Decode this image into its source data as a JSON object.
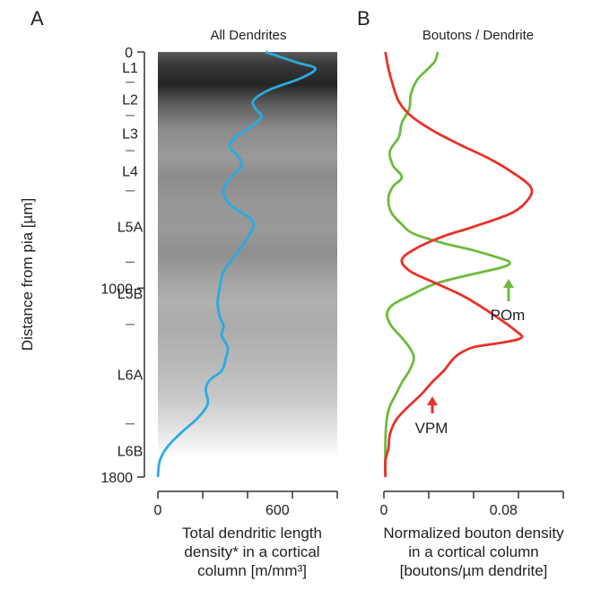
{
  "panels": {
    "a": {
      "letter": "A",
      "title": "All Dendrites"
    },
    "b": {
      "letter": "B",
      "title": "Boutons / Dendrite"
    }
  },
  "y_axis": {
    "label": "Distance from pia [µm]"
  },
  "layers": [
    "L1",
    "L2",
    "L3",
    "L4",
    "L5A",
    "L5B",
    "L6A",
    "L6B"
  ],
  "layer_boundaries": [
    128,
    269,
    418,
    588,
    890,
    1154,
    1575
  ],
  "annotations": {
    "pom": "POm",
    "vpm": "VPM"
  },
  "colors": {
    "dendrite": "#29abe2",
    "pom": "#6cbb3c",
    "vpm": "#e8312a",
    "axis": "#333333"
  },
  "chart_data": [
    {
      "type": "line",
      "title": "All Dendrites",
      "xlabel": "Total dendritic length density* in a cortical column [m/mm³]",
      "ylabel": "Distance from pia [µm]",
      "xlim": [
        0,
        900
      ],
      "ylim": [
        1800,
        0
      ],
      "x_ticks": [
        "0",
        "600"
      ],
      "y_ticks": [
        "0",
        "1000",
        "1800"
      ],
      "background": "grayscale density map (darkest at 0–150 µm, fading toward 1700 µm)",
      "series": [
        {
          "color": "#29abe2",
          "points": [
            [
              540,
              0
            ],
            [
              700,
              45
            ],
            [
              790,
              70
            ],
            [
              720,
              110
            ],
            [
              560,
              160
            ],
            [
              480,
              205
            ],
            [
              490,
              240
            ],
            [
              520,
              275
            ],
            [
              460,
              320
            ],
            [
              390,
              360
            ],
            [
              360,
              400
            ],
            [
              400,
              440
            ],
            [
              420,
              480
            ],
            [
              380,
              520
            ],
            [
              340,
              560
            ],
            [
              330,
              600
            ],
            [
              360,
              645
            ],
            [
              420,
              680
            ],
            [
              470,
              710
            ],
            [
              480,
              740
            ],
            [
              440,
              800
            ],
            [
              390,
              860
            ],
            [
              330,
              930
            ],
            [
              310,
              1000
            ],
            [
              300,
              1060
            ],
            [
              310,
              1120
            ],
            [
              330,
              1160
            ],
            [
              320,
              1200
            ],
            [
              350,
              1250
            ],
            [
              340,
              1300
            ],
            [
              320,
              1350
            ],
            [
              260,
              1390
            ],
            [
              240,
              1430
            ],
            [
              250,
              1490
            ],
            [
              200,
              1550
            ],
            [
              120,
              1610
            ],
            [
              50,
              1670
            ],
            [
              10,
              1730
            ],
            [
              0,
              1800
            ]
          ]
        }
      ]
    },
    {
      "type": "line",
      "title": "Boutons / Dendrite",
      "xlabel": "Normalized bouton density in a cortical column [boutons/µm dendrite]",
      "ylabel": "Distance from pia [µm]",
      "xlim": [
        0,
        0.12
      ],
      "ylim": [
        1800,
        0
      ],
      "x_ticks": [
        "0",
        "0.08"
      ],
      "series": [
        {
          "name": "POm",
          "color": "#6cbb3c",
          "points": [
            [
              0.036,
              0
            ],
            [
              0.034,
              40
            ],
            [
              0.028,
              80
            ],
            [
              0.022,
              120
            ],
            [
              0.018,
              180
            ],
            [
              0.017,
              240
            ],
            [
              0.012,
              300
            ],
            [
              0.01,
              360
            ],
            [
              0.004,
              420
            ],
            [
              0.006,
              480
            ],
            [
              0.012,
              530
            ],
            [
              0.006,
              570
            ],
            [
              0.003,
              620
            ],
            [
              0.005,
              680
            ],
            [
              0.012,
              730
            ],
            [
              0.02,
              770
            ],
            [
              0.04,
              810
            ],
            [
              0.06,
              840
            ],
            [
              0.076,
              870
            ],
            [
              0.084,
              890
            ],
            [
              0.08,
              910
            ],
            [
              0.06,
              940
            ],
            [
              0.035,
              980
            ],
            [
              0.018,
              1030
            ],
            [
              0.006,
              1070
            ],
            [
              0.002,
              1110
            ],
            [
              0.005,
              1160
            ],
            [
              0.012,
              1210
            ],
            [
              0.018,
              1260
            ],
            [
              0.02,
              1300
            ],
            [
              0.017,
              1350
            ],
            [
              0.012,
              1400
            ],
            [
              0.008,
              1450
            ],
            [
              0.004,
              1500
            ],
            [
              0.002,
              1550
            ],
            [
              0.001,
              1650
            ],
            [
              0.001,
              1800
            ]
          ]
        },
        {
          "name": "VPM",
          "color": "#e8312a",
          "points": [
            [
              0.001,
              0
            ],
            [
              0.003,
              70
            ],
            [
              0.006,
              140
            ],
            [
              0.01,
              210
            ],
            [
              0.018,
              270
            ],
            [
              0.032,
              330
            ],
            [
              0.05,
              390
            ],
            [
              0.07,
              450
            ],
            [
              0.086,
              510
            ],
            [
              0.098,
              570
            ],
            [
              0.097,
              620
            ],
            [
              0.086,
              680
            ],
            [
              0.06,
              740
            ],
            [
              0.04,
              780
            ],
            [
              0.022,
              830
            ],
            [
              0.012,
              880
            ],
            [
              0.018,
              930
            ],
            [
              0.035,
              980
            ],
            [
              0.055,
              1040
            ],
            [
              0.075,
              1120
            ],
            [
              0.088,
              1180
            ],
            [
              0.092,
              1210
            ],
            [
              0.08,
              1230
            ],
            [
              0.06,
              1250
            ],
            [
              0.05,
              1280
            ],
            [
              0.045,
              1310
            ],
            [
              0.04,
              1350
            ],
            [
              0.032,
              1400
            ],
            [
              0.025,
              1450
            ],
            [
              0.015,
              1510
            ],
            [
              0.008,
              1560
            ],
            [
              0.004,
              1620
            ],
            [
              0.003,
              1680
            ],
            [
              0.001,
              1730
            ],
            [
              0.001,
              1800
            ]
          ]
        }
      ]
    }
  ]
}
